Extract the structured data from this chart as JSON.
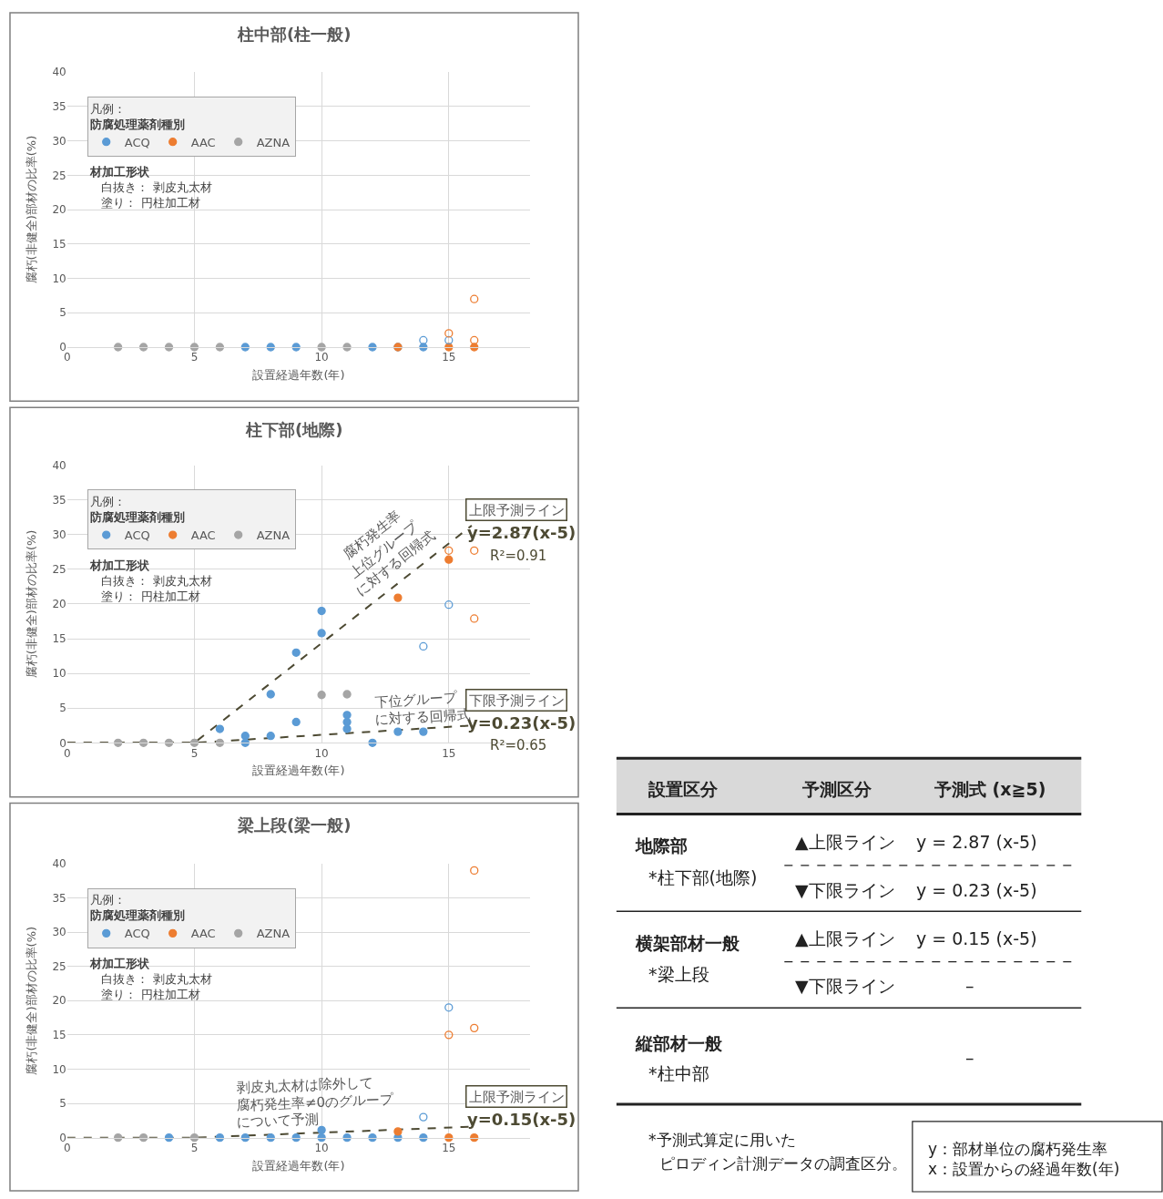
{
  "chart_data": [
    {
      "type": "scatter",
      "title": "柱中部(柱一般)",
      "xlabel": "設置経過年数(年)",
      "ylabel": "腐朽(非健全)部材の比率(%)",
      "xlim": [
        0,
        18.2
      ],
      "xticks": [
        0,
        5,
        10,
        15
      ],
      "ylim": [
        0,
        40
      ],
      "yticks": [
        0,
        5,
        10,
        15,
        20,
        25,
        30,
        35,
        40
      ],
      "grid": true,
      "legend": "top left",
      "legend_title": "凡例：",
      "series": [
        {
          "name": "ACQ",
          "color": "#5b9bd5",
          "marker": "circle",
          "x": [
            7,
            8,
            9,
            12,
            13,
            14
          ],
          "values": [
            0,
            0,
            0,
            0,
            0,
            0
          ]
        },
        {
          "name": "AAC",
          "color": "#ed7d31",
          "marker": "circle",
          "x": [
            13,
            15,
            16
          ],
          "values": [
            0,
            0,
            0
          ]
        },
        {
          "name": "AZNA",
          "color": "#a5a5a5",
          "marker": "circle",
          "x": [
            2,
            3,
            4,
            5,
            6,
            10,
            11
          ],
          "values": [
            0,
            0,
            0,
            0,
            0,
            0,
            0
          ]
        },
        {
          "colors": [
            "#5b9bd5",
            "#5b9bd5",
            "#ed7d31",
            "#ed7d31",
            "#ed7d31"
          ],
          "marker": "circle-open",
          "x": [
            14,
            15,
            15,
            16,
            16
          ],
          "values": [
            1,
            1,
            2,
            1,
            7
          ]
        }
      ],
      "annotations": [
        "防腐処理薬剤種別",
        "材加工形状",
        "白抜き： 剥皮丸太材",
        "塗り： 円柱加工材"
      ]
    },
    {
      "type": "scatter",
      "title": "柱下部(地際)",
      "xlabel": "設置経過年数(年)",
      "ylabel": "腐朽(非健全)部材の比率(%)",
      "xlim": [
        0,
        18.2
      ],
      "xticks": [
        0,
        5,
        10,
        15
      ],
      "ylim": [
        0,
        40
      ],
      "yticks": [
        0,
        5,
        10,
        15,
        20,
        25,
        30,
        35,
        40
      ],
      "grid": true,
      "legend": "top left",
      "legend_title": "凡例：",
      "series": [
        {
          "type": "line",
          "color": "#4d4a33",
          "line_style": "dashed",
          "marker": "none",
          "x": [
            0,
            5,
            15.9
          ],
          "values": [
            0,
            0,
            31.3
          ]
        },
        {
          "type": "line",
          "color": "#4d4a33",
          "line_style": "dashed",
          "marker": "none",
          "x": [
            0,
            5,
            15.9
          ],
          "values": [
            0,
            0,
            2.5
          ]
        },
        {
          "name": "ACQ",
          "color": "#5b9bd5",
          "marker": "circle",
          "x": [
            6,
            7,
            7,
            8,
            8,
            9,
            9,
            10,
            10,
            11,
            11,
            11,
            12,
            13,
            14
          ],
          "values": [
            2,
            1,
            0,
            1,
            7,
            3,
            13,
            15.8,
            19,
            4,
            3,
            2,
            0,
            1.6,
            1.6
          ]
        },
        {
          "name": "AAC",
          "color": "#ed7d31",
          "marker": "circle",
          "x": [
            13,
            15
          ],
          "values": [
            20.9,
            26.4
          ]
        },
        {
          "name": "AZNA",
          "color": "#a5a5a5",
          "marker": "circle",
          "x": [
            2,
            3,
            4,
            5,
            6,
            10,
            11
          ],
          "values": [
            0,
            0,
            0,
            0,
            0,
            6.9,
            7
          ]
        },
        {
          "colors": [
            "#5b9bd5",
            "#5b9bd5",
            "#ed7d31",
            "#ed7d31",
            "#ed7d31"
          ],
          "marker": "circle-open",
          "x": [
            14,
            15,
            15,
            16,
            16
          ],
          "values": [
            13.9,
            19.9,
            27.7,
            27.7,
            17.9
          ]
        }
      ],
      "annotations": [
        "防腐処理薬剤種別",
        "材加工形状",
        "白抜き： 剥皮丸太材",
        "塗り： 円柱加工材",
        "腐朽発生率",
        "上位グループ",
        "に対する回帰式",
        "上限予測ライン",
        "y=2.87(x-5)",
        "R²=0.91",
        "下位グループ",
        "に対する回帰式",
        "下限予測ライン",
        "y=0.23(x-5)",
        "R²=0.65"
      ]
    },
    {
      "type": "scatter",
      "title": "梁上段(梁一般)",
      "xlabel": "設置経過年数(年)",
      "ylabel": "腐朽(非健全)部材の比率(%)",
      "xlim": [
        0,
        18.2
      ],
      "xticks": [
        0,
        5,
        10,
        15
      ],
      "ylim": [
        0,
        40
      ],
      "yticks": [
        0,
        5,
        10,
        15,
        20,
        25,
        30,
        35,
        40
      ],
      "grid": true,
      "legend": "top left",
      "legend_title": "凡例：",
      "series": [
        {
          "type": "line",
          "color": "#4d4a33",
          "line_style": "dashed",
          "marker": "none",
          "x": [
            0,
            5,
            15.9
          ],
          "values": [
            0,
            0,
            1.6
          ]
        },
        {
          "name": "ACQ",
          "color": "#5b9bd5",
          "marker": "circle",
          "x": [
            4,
            6,
            7,
            8,
            9,
            10,
            10,
            11,
            12,
            13,
            14
          ],
          "values": [
            0,
            0,
            0,
            0,
            0,
            0,
            1.1,
            0,
            0,
            0,
            0
          ]
        },
        {
          "name": "AAC",
          "color": "#ed7d31",
          "marker": "circle",
          "x": [
            13,
            15,
            16
          ],
          "values": [
            0.9,
            0,
            0
          ]
        },
        {
          "name": "AZNA",
          "color": "#a5a5a5",
          "marker": "circle",
          "x": [
            2,
            3,
            5
          ],
          "values": [
            0,
            0,
            0
          ]
        },
        {
          "colors": [
            "#5b9bd5",
            "#5b9bd5",
            "#ed7d31",
            "#ed7d31",
            "#ed7d31"
          ],
          "marker": "circle-open",
          "x": [
            14,
            15,
            15,
            16,
            16
          ],
          "values": [
            3,
            19,
            15,
            16,
            39
          ]
        }
      ],
      "annotations": [
        "防腐処理薬剤種別",
        "材加工形状",
        "白抜き： 剥皮丸太材",
        "塗り： 円柱加工材",
        "剥皮丸太材は除外して",
        "腐朽発生率≠0のグループ",
        "について予測",
        "上限予測ライン",
        "y=0.15(x-5)"
      ]
    },
    {
      "type": "other",
      "annotations": [
        "設置区分",
        "予測区分",
        "予測式 (x≧5)",
        "地際部",
        "*柱下部(地際)",
        "▲上限ライン",
        "y = 2.87 (x-5)",
        "▼下限ライン",
        "y = 0.23 (x-5)",
        "横架部材一般",
        "*梁上段",
        "▲上限ライン",
        "y = 0.15 (x-5)",
        "▼下限ライン",
        "–",
        "縦部材一般",
        "*柱中部",
        "–",
        "*予測式算定に用いた",
        "ピロディン計測データの調査区分。",
        "y：部材単位の腐朽発生率\nx：設置からの経過年数(年)"
      ]
    }
  ]
}
